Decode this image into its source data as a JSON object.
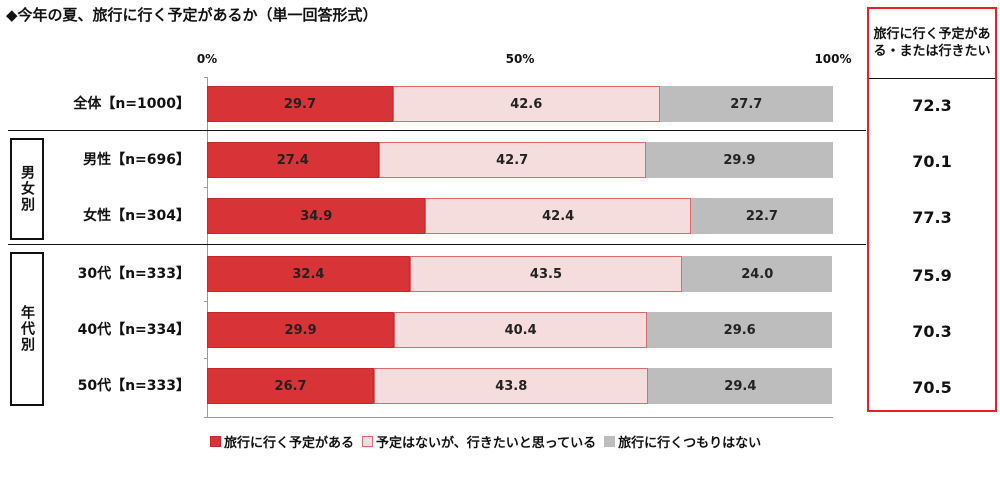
{
  "title": "◆今年の夏、旅行に行く予定があるか（単一回答形式）",
  "summary_header": "旅行に行く予定がある・または行きたい",
  "groups": {
    "gender": "男女別",
    "age": "年代別"
  },
  "legend": [
    {
      "name": "旅行に行く予定がある",
      "color": "#d83337"
    },
    {
      "name": "予定はないが、行きたいと思っている",
      "color": "#f6dddd"
    },
    {
      "name": "旅行に行くつもりはない",
      "color": "#bdbdbd"
    }
  ],
  "chart_data": {
    "type": "bar",
    "orientation": "horizontal",
    "stacked": "100%",
    "title": "◆今年の夏、旅行に行く予定があるか（単一回答形式）",
    "x_ticks": [
      "0%",
      "50%",
      "100%"
    ],
    "xlim": [
      0,
      100
    ],
    "categories": [
      "全体【n=1000】",
      "男性【n=696】",
      "女性【n=304】",
      "30代【n=333】",
      "40代【n=334】",
      "50代【n=333】"
    ],
    "series": [
      {
        "name": "旅行に行く予定がある",
        "values": [
          29.7,
          27.4,
          34.9,
          32.4,
          29.9,
          26.7
        ],
        "labels": [
          "29.7",
          "27.4",
          "34.9",
          "32.4",
          "29.9",
          "26.7"
        ]
      },
      {
        "name": "予定はないが、行きたいと思っている",
        "values": [
          42.6,
          42.7,
          42.4,
          43.5,
          40.4,
          43.8
        ],
        "labels": [
          "42.6",
          "42.7",
          "42.4",
          "43.5",
          "40.4",
          "43.8"
        ]
      },
      {
        "name": "旅行に行くつもりはない",
        "values": [
          27.7,
          29.9,
          22.7,
          24.0,
          29.6,
          29.4
        ],
        "labels": [
          "27.7",
          "29.9",
          "22.7",
          "24.0",
          "29.6",
          "29.4"
        ]
      }
    ],
    "summary": {
      "name": "旅行に行く予定がある・または行きたい",
      "values": [
        "72.3",
        "70.1",
        "77.3",
        "75.9",
        "70.3",
        "70.5"
      ]
    },
    "legend_position": "bottom",
    "grid": false
  }
}
